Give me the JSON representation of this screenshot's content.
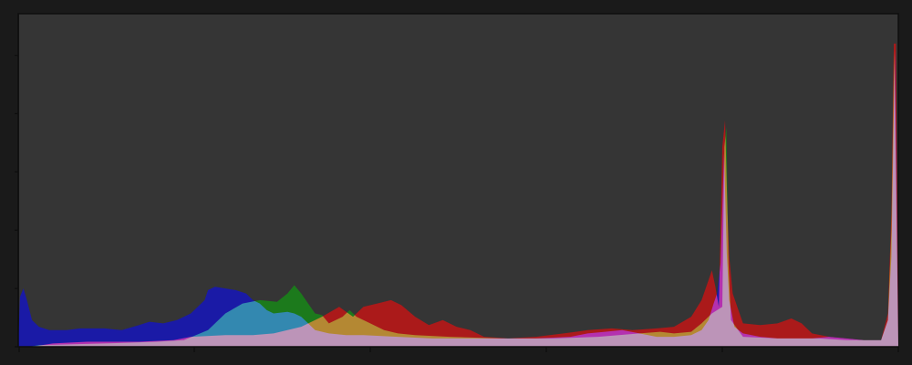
{
  "chart_data": {
    "type": "area",
    "title": "",
    "xlabel": "",
    "ylabel": "",
    "xlim": [
      0,
      255
    ],
    "ylim": [
      0,
      100
    ],
    "x_ticks": [
      0,
      51,
      102,
      153,
      204,
      255
    ],
    "y_ticks": [
      0,
      17.5,
      35,
      52.5,
      70,
      87.5
    ],
    "grid": false,
    "legend": "none",
    "blend": "additive",
    "colors": {
      "background": "#1a1a1a",
      "plot": "#353535",
      "frame": "#0e0e0e"
    },
    "series": [
      {
        "name": "red",
        "color": "#ab1a1a",
        "points": [
          [
            0,
            0
          ],
          [
            4,
            0
          ],
          [
            10,
            1
          ],
          [
            20,
            1.5
          ],
          [
            35,
            1.5
          ],
          [
            45,
            2
          ],
          [
            50,
            3
          ],
          [
            60,
            3.5
          ],
          [
            68,
            3.5
          ],
          [
            74,
            4
          ],
          [
            82,
            6
          ],
          [
            88,
            9
          ],
          [
            93,
            12
          ],
          [
            97,
            9
          ],
          [
            100,
            12
          ],
          [
            104,
            13
          ],
          [
            108,
            14
          ],
          [
            111,
            12.5
          ],
          [
            115,
            9
          ],
          [
            119,
            6.5
          ],
          [
            123,
            8
          ],
          [
            127,
            6
          ],
          [
            131,
            5
          ],
          [
            135,
            3
          ],
          [
            142,
            2.5
          ],
          [
            150,
            3
          ],
          [
            158,
            4
          ],
          [
            165,
            5
          ],
          [
            172,
            5.5
          ],
          [
            178,
            5
          ],
          [
            185,
            5.5
          ],
          [
            190,
            6
          ],
          [
            195,
            9
          ],
          [
            198,
            14
          ],
          [
            200,
            20
          ],
          [
            201,
            23
          ],
          [
            202,
            18
          ],
          [
            203,
            12
          ],
          [
            204,
            60
          ],
          [
            204.8,
            68
          ],
          [
            205.5,
            40
          ],
          [
            206,
            27
          ],
          [
            207,
            16
          ],
          [
            210,
            7
          ],
          [
            215,
            6.5
          ],
          [
            220,
            7
          ],
          [
            224,
            8.5
          ],
          [
            227,
            7
          ],
          [
            230,
            4
          ],
          [
            235,
            3
          ],
          [
            240,
            2.5
          ],
          [
            245,
            2
          ],
          [
            250,
            2
          ],
          [
            252,
            10
          ],
          [
            253,
            40
          ],
          [
            253.7,
            91
          ],
          [
            254.3,
            91
          ],
          [
            255,
            0
          ]
        ]
      },
      {
        "name": "green",
        "color": "#1c7a1c",
        "points": [
          [
            0,
            0
          ],
          [
            3,
            0
          ],
          [
            6,
            0.5
          ],
          [
            25,
            1
          ],
          [
            40,
            1.5
          ],
          [
            48,
            2
          ],
          [
            55,
            5
          ],
          [
            60,
            10
          ],
          [
            65,
            13
          ],
          [
            70,
            14
          ],
          [
            75,
            13.5
          ],
          [
            78,
            16
          ],
          [
            80,
            18.5
          ],
          [
            82,
            16
          ],
          [
            84,
            13
          ],
          [
            86,
            10
          ],
          [
            88,
            9.5
          ],
          [
            90,
            7
          ],
          [
            94,
            9
          ],
          [
            96,
            11
          ],
          [
            98,
            9
          ],
          [
            102,
            7
          ],
          [
            106,
            5
          ],
          [
            110,
            4
          ],
          [
            115,
            3.5
          ],
          [
            125,
            3
          ],
          [
            140,
            2.5
          ],
          [
            155,
            2.5
          ],
          [
            168,
            3
          ],
          [
            174,
            3.5
          ],
          [
            180,
            4
          ],
          [
            186,
            4.5
          ],
          [
            190,
            4
          ],
          [
            195,
            4.5
          ],
          [
            198,
            7
          ],
          [
            201,
            10
          ],
          [
            204,
            12
          ],
          [
            204.6,
            60
          ],
          [
            205.2,
            66
          ],
          [
            205.8,
            25
          ],
          [
            206.5,
            8
          ],
          [
            210,
            3
          ],
          [
            220,
            2.5
          ],
          [
            232,
            2.5
          ],
          [
            240,
            2
          ],
          [
            245,
            2
          ],
          [
            250,
            2
          ],
          [
            252,
            8
          ],
          [
            253,
            35
          ],
          [
            253.8,
            89
          ],
          [
            255,
            0
          ]
        ]
      },
      {
        "name": "blue",
        "color": "#1a1aa6",
        "points": [
          [
            0,
            0
          ],
          [
            0.5,
            15
          ],
          [
            1.5,
            17.5
          ],
          [
            2.5,
            14
          ],
          [
            4,
            8
          ],
          [
            6,
            6
          ],
          [
            9,
            5
          ],
          [
            14,
            5
          ],
          [
            18,
            5.5
          ],
          [
            25,
            5.5
          ],
          [
            30,
            5
          ],
          [
            35,
            6.5
          ],
          [
            38,
            7.5
          ],
          [
            42,
            7
          ],
          [
            46,
            8
          ],
          [
            50,
            10
          ],
          [
            52,
            12
          ],
          [
            54,
            14
          ],
          [
            55,
            17
          ],
          [
            57,
            18
          ],
          [
            60,
            17.5
          ],
          [
            63,
            17
          ],
          [
            66,
            16
          ],
          [
            68,
            14
          ],
          [
            70,
            13
          ],
          [
            72,
            11
          ],
          [
            74,
            10
          ],
          [
            78,
            10.5
          ],
          [
            80,
            10
          ],
          [
            82,
            9
          ],
          [
            84,
            7
          ],
          [
            86,
            5
          ],
          [
            90,
            4
          ],
          [
            95,
            3.5
          ],
          [
            100,
            3.5
          ],
          [
            110,
            3
          ],
          [
            120,
            2.5
          ],
          [
            130,
            2.5
          ],
          [
            140,
            2.5
          ],
          [
            150,
            2.5
          ],
          [
            160,
            3
          ],
          [
            165,
            4
          ],
          [
            170,
            4.5
          ],
          [
            175,
            5
          ],
          [
            180,
            4
          ],
          [
            185,
            3
          ],
          [
            190,
            3
          ],
          [
            195,
            3.5
          ],
          [
            198,
            5
          ],
          [
            200,
            8
          ],
          [
            201.5,
            13
          ],
          [
            202.5,
            16
          ],
          [
            203.5,
            25
          ],
          [
            204.5,
            58
          ],
          [
            205.3,
            28
          ],
          [
            206,
            14
          ],
          [
            207.5,
            6
          ],
          [
            210,
            4
          ],
          [
            215,
            3
          ],
          [
            220,
            2.5
          ],
          [
            225,
            2.5
          ],
          [
            230,
            2.5
          ],
          [
            235,
            3
          ],
          [
            240,
            2.5
          ],
          [
            245,
            2
          ],
          [
            250,
            2
          ],
          [
            252,
            8
          ],
          [
            253,
            27
          ],
          [
            254,
            89
          ],
          [
            255,
            0
          ]
        ]
      }
    ]
  }
}
